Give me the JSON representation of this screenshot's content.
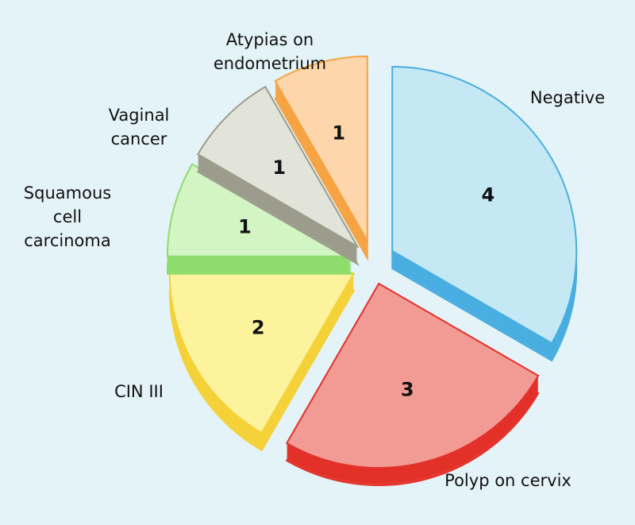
{
  "chart_data": {
    "type": "pie",
    "categories": [
      "Negative",
      "Polyp on cervix",
      "CIN III",
      "Squamous cell carcinoma",
      "Vaginal cancer",
      "Atypias on endometrium"
    ],
    "values": [
      4,
      3,
      2,
      1,
      1,
      1
    ],
    "colors": [
      "#c4e9f4",
      "#f19b94",
      "#fdf39c",
      "#d3f5c4",
      "#e2e3d9",
      "#fdd7ab"
    ],
    "edge_colors": [
      "#4aaee0",
      "#e3322a",
      "#f4d23a",
      "#8ddc6c",
      "#9c9c8c",
      "#f5a444"
    ]
  }
}
